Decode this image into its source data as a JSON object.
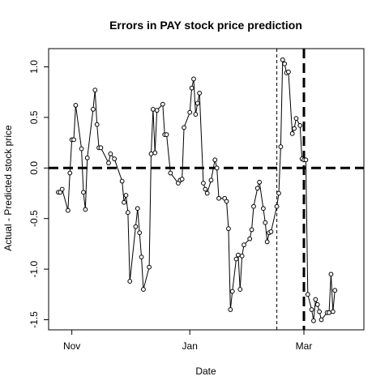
{
  "chart_data": {
    "type": "line",
    "title": "Errors in PAY stock price prediction",
    "xlabel": "Date",
    "ylabel": "Actual - Predicted stock price",
    "x_ticks": [
      {
        "label": "Nov",
        "day": 0
      },
      {
        "label": "Jan",
        "day": 61
      },
      {
        "label": "Mar",
        "day": 120
      }
    ],
    "xlim": [
      -12,
      151
    ],
    "y_ticks": [
      -1.5,
      -1.0,
      -0.5,
      0.0,
      0.5,
      1.0
    ],
    "y_tick_labels": [
      "-1.5",
      "-1.0",
      "-0.5",
      "0.0",
      "0.5",
      "1.0"
    ],
    "ylim": [
      -1.6,
      1.18
    ],
    "series": [
      {
        "points": [
          [
            -7,
            -0.24
          ],
          [
            -6,
            -0.24
          ],
          [
            -5,
            -0.21
          ],
          [
            -2,
            -0.42
          ],
          [
            -1,
            -0.05
          ],
          [
            0,
            0.28
          ],
          [
            1,
            0.28
          ],
          [
            2,
            0.62
          ],
          [
            5,
            0.19
          ],
          [
            6,
            -0.24
          ],
          [
            7,
            -0.41
          ],
          [
            8,
            0.1
          ],
          [
            11,
            0.58
          ],
          [
            12,
            0.77
          ],
          [
            13,
            0.43
          ],
          [
            14,
            0.2
          ],
          [
            15,
            0.2
          ],
          [
            19,
            0.05
          ],
          [
            20,
            0.14
          ],
          [
            22,
            0.09
          ],
          [
            26,
            -0.13
          ],
          [
            27,
            -0.34
          ],
          [
            28,
            -0.27
          ],
          [
            29,
            -0.44
          ],
          [
            30,
            -1.12
          ],
          [
            33,
            -0.58
          ],
          [
            34,
            -0.4
          ],
          [
            35,
            -0.64
          ],
          [
            36,
            -0.88
          ],
          [
            37,
            -1.2
          ],
          [
            40,
            -0.98
          ],
          [
            41,
            0.14
          ],
          [
            42,
            0.58
          ],
          [
            43,
            0.15
          ],
          [
            44,
            0.57
          ],
          [
            47,
            0.63
          ],
          [
            48,
            0.33
          ],
          [
            49,
            0.33
          ],
          [
            51,
            -0.05
          ],
          [
            55,
            -0.15
          ],
          [
            56,
            -0.12
          ],
          [
            57,
            -0.11
          ],
          [
            58,
            0.4
          ],
          [
            61,
            0.55
          ],
          [
            62,
            0.79
          ],
          [
            63,
            0.88
          ],
          [
            64,
            0.53
          ],
          [
            65,
            0.64
          ],
          [
            66,
            0.74
          ],
          [
            68,
            -0.15
          ],
          [
            69,
            -0.21
          ],
          [
            70,
            -0.25
          ],
          [
            72,
            -0.12
          ],
          [
            74,
            0.08
          ],
          [
            75,
            0.0
          ],
          [
            76,
            -0.3
          ],
          [
            79,
            -0.3
          ],
          [
            80,
            -0.33
          ],
          [
            81,
            -0.6
          ],
          [
            82,
            -1.4
          ],
          [
            83,
            -1.22
          ],
          [
            85,
            -0.9
          ],
          [
            86,
            -0.86
          ],
          [
            87,
            -1.2
          ],
          [
            88,
            -0.87
          ],
          [
            89,
            -0.76
          ],
          [
            92,
            -0.7
          ],
          [
            93,
            -0.61
          ],
          [
            94,
            -0.38
          ],
          [
            96,
            -0.2
          ],
          [
            97,
            -0.14
          ],
          [
            99,
            -0.4
          ],
          [
            100,
            -0.54
          ],
          [
            101,
            -0.73
          ],
          [
            102,
            -0.64
          ],
          [
            103,
            -0.63
          ],
          [
            106,
            -0.38
          ],
          [
            107,
            -0.25
          ],
          [
            108,
            0.21
          ],
          [
            109,
            1.07
          ],
          [
            110,
            1.03
          ],
          [
            111,
            0.94
          ],
          [
            112,
            0.95
          ],
          [
            114,
            0.34
          ],
          [
            115,
            0.39
          ],
          [
            116,
            0.49
          ],
          [
            118,
            0.42
          ],
          [
            119,
            0.09
          ],
          [
            120,
            0.08
          ],
          [
            121,
            0.08
          ],
          [
            122,
            -1.25
          ],
          [
            124,
            -1.4
          ],
          [
            125,
            -1.51
          ],
          [
            126,
            -1.3
          ],
          [
            127,
            -1.35
          ],
          [
            128,
            -1.42
          ],
          [
            129,
            -1.5
          ],
          [
            132,
            -1.43
          ],
          [
            133,
            -1.43
          ],
          [
            134,
            -1.05
          ],
          [
            135,
            -1.42
          ],
          [
            136,
            -1.21
          ]
        ]
      }
    ],
    "reference_lines": [
      {
        "orientation": "horizontal",
        "value": 0.0,
        "style": "thick-dashed"
      },
      {
        "orientation": "vertical",
        "value": 106,
        "style": "thin-dashed"
      },
      {
        "orientation": "vertical",
        "value": 120,
        "style": "thick-dashed"
      }
    ],
    "grid": false,
    "legend": "none",
    "colors": {
      "line": "#000000",
      "points_fill": "#ffffff",
      "axes": "#000000"
    }
  }
}
